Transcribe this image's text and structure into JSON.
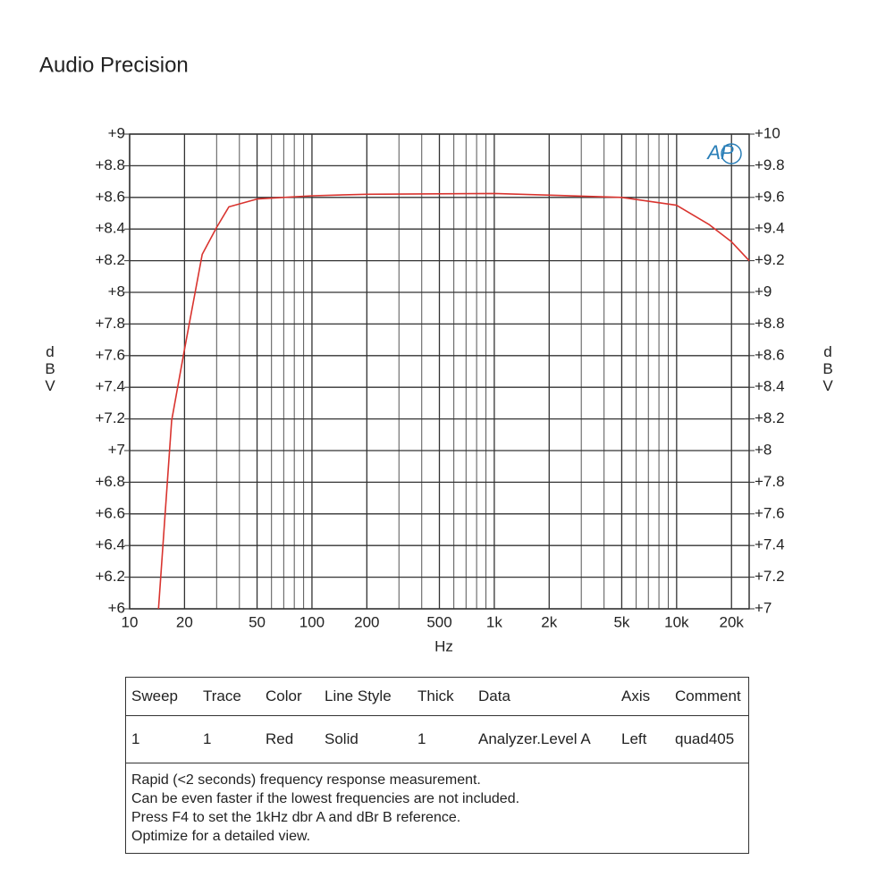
{
  "title": "Audio Precision",
  "chart_data": {
    "type": "line",
    "logo": "AP",
    "y_label": "dBV",
    "y2_label": "dBV",
    "x_label": "Hz",
    "x_log": true,
    "grid": true,
    "xlim": [
      10,
      25000
    ],
    "xticks": [
      10,
      20,
      50,
      100,
      200,
      500,
      {
        "value": 1000,
        "label": "1k"
      },
      {
        "value": 2000,
        "label": "2k"
      },
      {
        "value": 5000,
        "label": "5k"
      },
      {
        "value": 10000,
        "label": "10k"
      },
      {
        "value": 20000,
        "label": "20k"
      }
    ],
    "xgrid": [
      30,
      40,
      60,
      70,
      80,
      90,
      300,
      400,
      600,
      700,
      800,
      900,
      3000,
      4000,
      6000,
      7000,
      8000,
      9000
    ],
    "ylim": [
      6,
      9
    ],
    "yticks": [
      {
        "value": 9,
        "label": "+9"
      },
      {
        "value": 8.8,
        "label": "+8.8"
      },
      {
        "value": 8.6,
        "label": "+8.6"
      },
      {
        "value": 8.4,
        "label": "+8.4"
      },
      {
        "value": 8.2,
        "label": "+8.2"
      },
      {
        "value": 8,
        "label": "+8"
      },
      {
        "value": 7.8,
        "label": "+7.8"
      },
      {
        "value": 7.6,
        "label": "+7.6"
      },
      {
        "value": 7.4,
        "label": "+7.4"
      },
      {
        "value": 7.2,
        "label": "+7.2"
      },
      {
        "value": 7,
        "label": "+7"
      },
      {
        "value": 6.8,
        "label": "+6.8"
      },
      {
        "value": 6.6,
        "label": "+6.6"
      },
      {
        "value": 6.4,
        "label": "+6.4"
      },
      {
        "value": 6.2,
        "label": "+6.2"
      },
      {
        "value": 6,
        "label": "+6"
      }
    ],
    "y2lim": [
      7,
      10
    ],
    "y2ticks": [
      {
        "value": 10,
        "label": "+10"
      },
      {
        "value": 9.8,
        "label": "+9.8"
      },
      {
        "value": 9.6,
        "label": "+9.6"
      },
      {
        "value": 9.4,
        "label": "+9.4"
      },
      {
        "value": 9.2,
        "label": "+9.2"
      },
      {
        "value": 9,
        "label": "+9"
      },
      {
        "value": 8.8,
        "label": "+8.8"
      },
      {
        "value": 8.6,
        "label": "+8.6"
      },
      {
        "value": 8.4,
        "label": "+8.4"
      },
      {
        "value": 8.2,
        "label": "+8.2"
      },
      {
        "value": 8,
        "label": "+8"
      },
      {
        "value": 7.8,
        "label": "+7.8"
      },
      {
        "value": 7.6,
        "label": "+7.6"
      },
      {
        "value": 7.4,
        "label": "+7.4"
      },
      {
        "value": 7.2,
        "label": "+7.2"
      },
      {
        "value": 7,
        "label": "+7"
      }
    ],
    "series": [
      {
        "color": "#d9342f",
        "x": [
          14.4,
          17,
          20,
          25,
          30,
          35,
          50,
          100,
          200,
          1000,
          5000,
          10000,
          15000,
          20000,
          25000
        ],
        "values": [
          6.0,
          7.19,
          7.64,
          8.24,
          8.41,
          8.54,
          8.59,
          8.61,
          8.62,
          8.625,
          8.6,
          8.55,
          8.43,
          8.32,
          8.2
        ]
      }
    ]
  },
  "table": {
    "headers": [
      "Sweep",
      "Trace",
      "Color",
      "Line Style",
      "Thick",
      "Data",
      "Axis",
      "Comment"
    ],
    "rows": [
      [
        "1",
        "1",
        "Red",
        "Solid",
        "1",
        "Analyzer.Level A",
        "Left",
        "quad405"
      ]
    ]
  },
  "notes": [
    "Rapid (<2 seconds) frequency response measurement.",
    "Can be even faster if the lowest frequencies are not included.",
    "Press F4 to set the 1kHz dbr A and dBr B reference.",
    "Optimize for a detailed view."
  ]
}
